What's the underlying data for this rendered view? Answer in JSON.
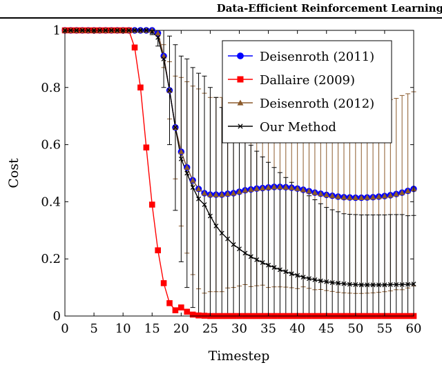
{
  "header": {
    "title": "Data-Efficient Reinforcement Learning"
  },
  "chart_data": {
    "type": "line",
    "xlabel": "Timestep",
    "ylabel": "Cost",
    "xlim": [
      0,
      60
    ],
    "ylim": [
      0,
      1
    ],
    "xticks": [
      0,
      5,
      10,
      15,
      20,
      25,
      30,
      35,
      40,
      45,
      50,
      55,
      60
    ],
    "yticks": [
      0,
      0.2,
      0.4,
      0.6,
      0.8,
      1
    ],
    "ytick_labels": [
      "0",
      "0.2",
      "0.4",
      "0.6",
      "0.8",
      "1"
    ],
    "grid": false,
    "legend_position": "top-right",
    "x": [
      0,
      1,
      2,
      3,
      4,
      5,
      6,
      7,
      8,
      9,
      10,
      11,
      12,
      13,
      14,
      15,
      16,
      17,
      18,
      19,
      20,
      21,
      22,
      23,
      24,
      25,
      26,
      27,
      28,
      29,
      30,
      31,
      32,
      33,
      34,
      35,
      36,
      37,
      38,
      39,
      40,
      41,
      42,
      43,
      44,
      45,
      46,
      47,
      48,
      49,
      50,
      51,
      52,
      53,
      54,
      55,
      56,
      57,
      58,
      59,
      60
    ],
    "series": [
      {
        "name": "Deisenroth (2011)",
        "color": "#0000ff",
        "marker": "circle",
        "values": [
          1,
          1,
          1,
          1,
          1,
          1,
          1,
          1,
          1,
          1,
          1,
          1,
          1,
          1,
          1,
          1,
          0.99,
          0.91,
          0.79,
          0.66,
          0.575,
          0.52,
          0.475,
          0.445,
          0.43,
          0.425,
          0.425,
          0.425,
          0.428,
          0.43,
          0.435,
          0.44,
          0.443,
          0.446,
          0.448,
          0.45,
          0.452,
          0.452,
          0.451,
          0.449,
          0.446,
          0.442,
          0.437,
          0.432,
          0.428,
          0.424,
          0.421,
          0.418,
          0.416,
          0.415,
          0.414,
          0.414,
          0.415,
          0.416,
          0.418,
          0.42,
          0.423,
          0.427,
          0.432,
          0.438,
          0.445
        ]
      },
      {
        "name": "Dallaire (2009)",
        "color": "#ff0000",
        "marker": "square",
        "values": [
          1,
          1,
          1,
          1,
          1,
          1,
          1,
          1,
          1,
          1,
          1,
          1,
          0.94,
          0.8,
          0.59,
          0.39,
          0.23,
          0.115,
          0.045,
          0.02,
          0.03,
          0.015,
          0.005,
          0.002,
          0.001,
          0,
          0,
          0,
          0,
          0,
          0,
          0,
          0,
          0,
          0,
          0,
          0,
          0,
          0,
          0,
          0,
          0,
          0,
          0,
          0,
          0,
          0,
          0,
          0,
          0,
          0,
          0,
          0,
          0,
          0,
          0,
          0,
          0,
          0,
          0,
          0
        ]
      },
      {
        "name": "Deisenroth (2012)",
        "color": "#8b5a2b",
        "marker": "triangle",
        "values": [
          1,
          1,
          1,
          1,
          1,
          1,
          1,
          1,
          1,
          1,
          1,
          1,
          1,
          1,
          1,
          1,
          0.99,
          0.91,
          0.79,
          0.66,
          0.575,
          0.52,
          0.475,
          0.445,
          0.43,
          0.425,
          0.425,
          0.425,
          0.428,
          0.43,
          0.435,
          0.44,
          0.443,
          0.446,
          0.448,
          0.45,
          0.452,
          0.452,
          0.451,
          0.449,
          0.446,
          0.442,
          0.437,
          0.432,
          0.428,
          0.424,
          0.421,
          0.418,
          0.416,
          0.415,
          0.414,
          0.414,
          0.415,
          0.416,
          0.418,
          0.42,
          0.423,
          0.427,
          0.432,
          0.438,
          0.445
        ],
        "error": [
          0,
          0,
          0,
          0,
          0,
          0,
          0,
          0,
          0,
          0,
          0,
          0,
          0,
          0,
          0,
          0,
          0.01,
          0.04,
          0.1,
          0.18,
          0.26,
          0.3,
          0.33,
          0.35,
          0.35,
          0.34,
          0.34,
          0.34,
          0.33,
          0.33,
          0.33,
          0.33,
          0.34,
          0.34,
          0.34,
          0.35,
          0.35,
          0.35,
          0.35,
          0.35,
          0.35,
          0.34,
          0.34,
          0.34,
          0.335,
          0.335,
          0.335,
          0.335,
          0.335,
          0.335,
          0.335,
          0.335,
          0.335,
          0.335,
          0.335,
          0.335,
          0.335,
          0.335,
          0.34,
          0.34,
          0.34
        ]
      },
      {
        "name": "Our Method",
        "color": "#000000",
        "marker": "cross",
        "values": [
          1,
          1,
          1,
          1,
          1,
          1,
          1,
          1,
          1,
          1,
          1,
          1,
          1,
          1,
          1,
          0.995,
          0.975,
          0.9,
          0.79,
          0.66,
          0.55,
          0.5,
          0.45,
          0.41,
          0.39,
          0.35,
          0.315,
          0.29,
          0.27,
          0.25,
          0.235,
          0.22,
          0.208,
          0.197,
          0.187,
          0.178,
          0.17,
          0.162,
          0.155,
          0.148,
          0.142,
          0.136,
          0.131,
          0.127,
          0.123,
          0.12,
          0.117,
          0.115,
          0.113,
          0.111,
          0.11,
          0.109,
          0.109,
          0.109,
          0.109,
          0.109,
          0.11,
          0.11,
          0.11,
          0.111,
          0.112
        ],
        "error": [
          0,
          0,
          0,
          0,
          0,
          0,
          0,
          0,
          0,
          0,
          0,
          0,
          0,
          0,
          0,
          0.01,
          0.03,
          0.1,
          0.19,
          0.29,
          0.36,
          0.4,
          0.42,
          0.44,
          0.45,
          0.45,
          0.45,
          0.44,
          0.43,
          0.42,
          0.41,
          0.4,
          0.39,
          0.38,
          0.37,
          0.36,
          0.35,
          0.34,
          0.33,
          0.32,
          0.31,
          0.3,
          0.29,
          0.28,
          0.27,
          0.26,
          0.255,
          0.25,
          0.245,
          0.245,
          0.245,
          0.245,
          0.245,
          0.245,
          0.245,
          0.245,
          0.245,
          0.245,
          0.245,
          0.24,
          0.24
        ]
      }
    ]
  }
}
